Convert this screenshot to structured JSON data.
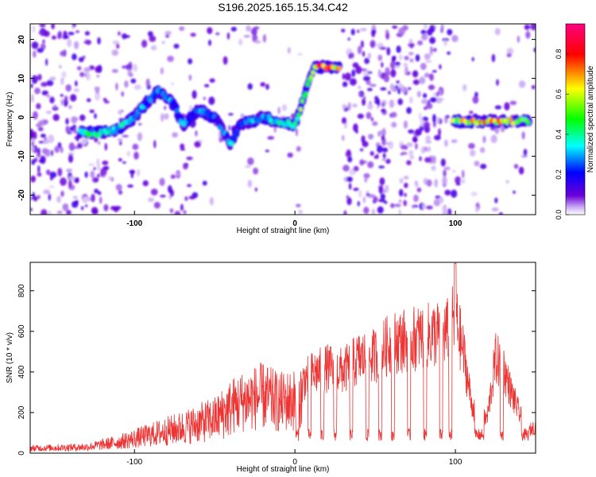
{
  "title": "S196.2025.165.15.34.C42",
  "chart_data": [
    {
      "type": "heatmap",
      "xlabel": "Height of straight line (km)",
      "ylabel": "Frequency (Hz)",
      "xlim": [
        -165,
        150
      ],
      "ylim": [
        -25,
        24
      ],
      "x_ticks": [
        "-100",
        "0",
        "100"
      ],
      "y_ticks": [
        "-20",
        "-10",
        "0",
        "10",
        "20"
      ],
      "colorbar": {
        "label": "Normalized spectral amplitude",
        "range": [
          0,
          0.95
        ],
        "ticks": [
          "0.0",
          "0.2",
          "0.4",
          "0.6",
          "0.8"
        ],
        "colors": [
          "#ffffff",
          "#6a00d8",
          "#0000ff",
          "#00ffff",
          "#00ff00",
          "#ffff00",
          "#ff0000",
          "#ff0080"
        ]
      },
      "ridge": [
        {
          "x": -130,
          "y": -4,
          "a": 0.45
        },
        {
          "x": -120,
          "y": -4,
          "a": 0.4
        },
        {
          "x": -110,
          "y": -3,
          "a": 0.42
        },
        {
          "x": -100,
          "y": 0,
          "a": 0.35
        },
        {
          "x": -92,
          "y": 4,
          "a": 0.3
        },
        {
          "x": -85,
          "y": 7,
          "a": 0.3
        },
        {
          "x": -75,
          "y": 3,
          "a": 0.3
        },
        {
          "x": -70,
          "y": -2,
          "a": 0.3
        },
        {
          "x": -60,
          "y": 2,
          "a": 0.3
        },
        {
          "x": -50,
          "y": 0,
          "a": 0.25
        },
        {
          "x": -40,
          "y": -7,
          "a": 0.35
        },
        {
          "x": -35,
          "y": -2,
          "a": 0.3
        },
        {
          "x": -20,
          "y": 0,
          "a": 0.35
        },
        {
          "x": -10,
          "y": -1,
          "a": 0.5
        },
        {
          "x": 0,
          "y": -2,
          "a": 0.45
        },
        {
          "x": 12,
          "y": 13,
          "a": 0.8
        },
        {
          "x": 20,
          "y": 13,
          "a": 0.9
        },
        {
          "x": 28,
          "y": 13,
          "a": 0.85
        },
        {
          "x": 98,
          "y": -1,
          "a": 0.6
        },
        {
          "x": 108,
          "y": -1,
          "a": 0.7
        },
        {
          "x": 122,
          "y": -1,
          "a": 0.75
        },
        {
          "x": 135,
          "y": -1,
          "a": 0.65
        },
        {
          "x": 146,
          "y": -1,
          "a": 0.5
        }
      ]
    },
    {
      "type": "line",
      "xlabel": "Height of straight line (km)",
      "ylabel": "SNR (10 * v/v)",
      "xlim": [
        -165,
        150
      ],
      "ylim": [
        0,
        940
      ],
      "x_ticks": [
        "-100",
        "0",
        "100"
      ],
      "y_ticks": [
        "0",
        "200",
        "400",
        "600",
        "800"
      ],
      "color": "#ee3333",
      "envelope": [
        {
          "x": -165,
          "y": 40
        },
        {
          "x": -130,
          "y": 50
        },
        {
          "x": -110,
          "y": 90
        },
        {
          "x": -90,
          "y": 150
        },
        {
          "x": -70,
          "y": 210
        },
        {
          "x": -50,
          "y": 280
        },
        {
          "x": -40,
          "y": 370
        },
        {
          "x": -30,
          "y": 420
        },
        {
          "x": -20,
          "y": 450
        },
        {
          "x": -10,
          "y": 400
        },
        {
          "x": 0,
          "y": 420
        },
        {
          "x": 10,
          "y": 500
        },
        {
          "x": 20,
          "y": 540
        },
        {
          "x": 30,
          "y": 520
        },
        {
          "x": 40,
          "y": 600
        },
        {
          "x": 50,
          "y": 620
        },
        {
          "x": 60,
          "y": 700
        },
        {
          "x": 70,
          "y": 720
        },
        {
          "x": 80,
          "y": 740
        },
        {
          "x": 90,
          "y": 760
        },
        {
          "x": 95,
          "y": 770
        },
        {
          "x": 100,
          "y": 860
        },
        {
          "x": 105,
          "y": 640
        },
        {
          "x": 110,
          "y": 320
        },
        {
          "x": 115,
          "y": 200
        },
        {
          "x": 120,
          "y": 230
        },
        {
          "x": 125,
          "y": 600
        },
        {
          "x": 130,
          "y": 540
        },
        {
          "x": 135,
          "y": 380
        },
        {
          "x": 140,
          "y": 250
        },
        {
          "x": 145,
          "y": 140
        },
        {
          "x": 150,
          "y": 170
        }
      ],
      "dropouts": [
        [
          0.5,
          2.5
        ],
        [
          8,
          10
        ],
        [
          16,
          18
        ],
        [
          24,
          26
        ],
        [
          34,
          36
        ],
        [
          44,
          46
        ],
        [
          52,
          54
        ],
        [
          60,
          62
        ],
        [
          70,
          72
        ],
        [
          80,
          82
        ],
        [
          90,
          92
        ],
        [
          96,
          98
        ],
        [
          112,
          118
        ],
        [
          128,
          130
        ],
        [
          141,
          146
        ]
      ]
    }
  ]
}
